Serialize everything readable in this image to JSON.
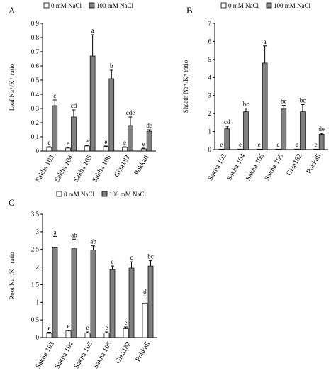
{
  "figure": {
    "panels": [
      {
        "letter": "A",
        "legend": [
          "0 mM NaCl",
          "100 mM NaCl"
        ]
      },
      {
        "letter": "B",
        "legend": [
          "0 mM NaCl",
          "100 mM NaCl"
        ]
      },
      {
        "letter": "C",
        "legend": [
          "0 mM NaCl",
          "100 mM NaCl"
        ]
      }
    ],
    "colors": {
      "control": "#ffffff",
      "salt": "#808080",
      "axis": "#000000"
    }
  },
  "chart_data": [
    {
      "type": "bar",
      "ylabel": "Leaf Na⁺/K⁺ ratio",
      "ylim": [
        0,
        0.9
      ],
      "yticks": [
        "0",
        "0.1",
        "0.2",
        "0.3",
        "0.4",
        "0.5",
        "0.6",
        "0.7",
        "0.8",
        "0.9"
      ],
      "categories": [
        "Sakha 103",
        "Sakha 104",
        "Sakha 105",
        "Sakha 106",
        "Giza182",
        "Pokkali"
      ],
      "legend_position": "top-left",
      "grid": false,
      "series": [
        {
          "name": "0 mM NaCl",
          "values": [
            0.025,
            0.02,
            0.035,
            0.03,
            0.025,
            0.015
          ],
          "errors": [
            0.005,
            0.005,
            0.005,
            0.005,
            0.005,
            0.005
          ],
          "letters": [
            "e",
            "e",
            "e",
            "e",
            "e",
            "e"
          ]
        },
        {
          "name": "100 mM NaCl",
          "values": [
            0.32,
            0.24,
            0.67,
            0.51,
            0.18,
            0.14
          ],
          "errors": [
            0.04,
            0.05,
            0.15,
            0.06,
            0.06,
            0.01
          ],
          "letters": [
            "c",
            "cd",
            "a",
            "b",
            "cde",
            "de"
          ]
        }
      ]
    },
    {
      "type": "bar",
      "ylabel": "Sheath Na⁺/K⁺ ratio",
      "ylim": [
        0,
        7
      ],
      "yticks": [
        "0",
        "1",
        "2",
        "3",
        "4",
        "5",
        "6",
        "7"
      ],
      "categories": [
        "Sakha 103",
        "Sakha 104",
        "Sakha 105",
        "Sakha 106",
        "Giza182",
        "Pokkali"
      ],
      "legend_position": "top-left",
      "grid": false,
      "series": [
        {
          "name": "0 mM NaCl",
          "values": [
            0.03,
            0.03,
            0.03,
            0.03,
            0.03,
            0.03
          ],
          "errors": [
            0,
            0,
            0,
            0,
            0,
            0
          ],
          "letters": [
            "e",
            "e",
            "e",
            "e",
            "e",
            "e"
          ]
        },
        {
          "name": "100 mM NaCl",
          "values": [
            1.15,
            2.1,
            4.8,
            2.25,
            2.1,
            0.85
          ],
          "errors": [
            0.15,
            0.2,
            0.95,
            0.2,
            0.4,
            0.05
          ],
          "letters": [
            "cd",
            "bc",
            "a",
            "bc",
            "bc",
            "de"
          ]
        }
      ]
    },
    {
      "type": "bar",
      "ylabel": "Root Na⁺/K⁺ ratio",
      "ylim": [
        0,
        3.5
      ],
      "yticks": [
        "0",
        "0.5",
        "1",
        "1.5",
        "2",
        "2.5",
        "3",
        "3.5"
      ],
      "categories": [
        "Sakha 103",
        "Sakha 104",
        "Sakha 105",
        "Sakha 106",
        "Giza182",
        "Pokkali"
      ],
      "legend_position": "top-left",
      "grid": false,
      "series": [
        {
          "name": "0 mM NaCl",
          "values": [
            0.12,
            0.19,
            0.13,
            0.13,
            0.25,
            0.98
          ],
          "errors": [
            0.03,
            0.02,
            0.03,
            0.03,
            0.05,
            0.2
          ],
          "letters": [
            "e",
            "e",
            "e",
            "e",
            "e",
            "d"
          ]
        },
        {
          "name": "100 mM NaCl",
          "values": [
            2.55,
            2.52,
            2.48,
            1.93,
            1.97,
            2.03
          ],
          "errors": [
            0.32,
            0.27,
            0.12,
            0.1,
            0.18,
            0.15
          ],
          "letters": [
            "a",
            "ab",
            "ab",
            "c",
            "c",
            "bc"
          ]
        }
      ]
    }
  ]
}
